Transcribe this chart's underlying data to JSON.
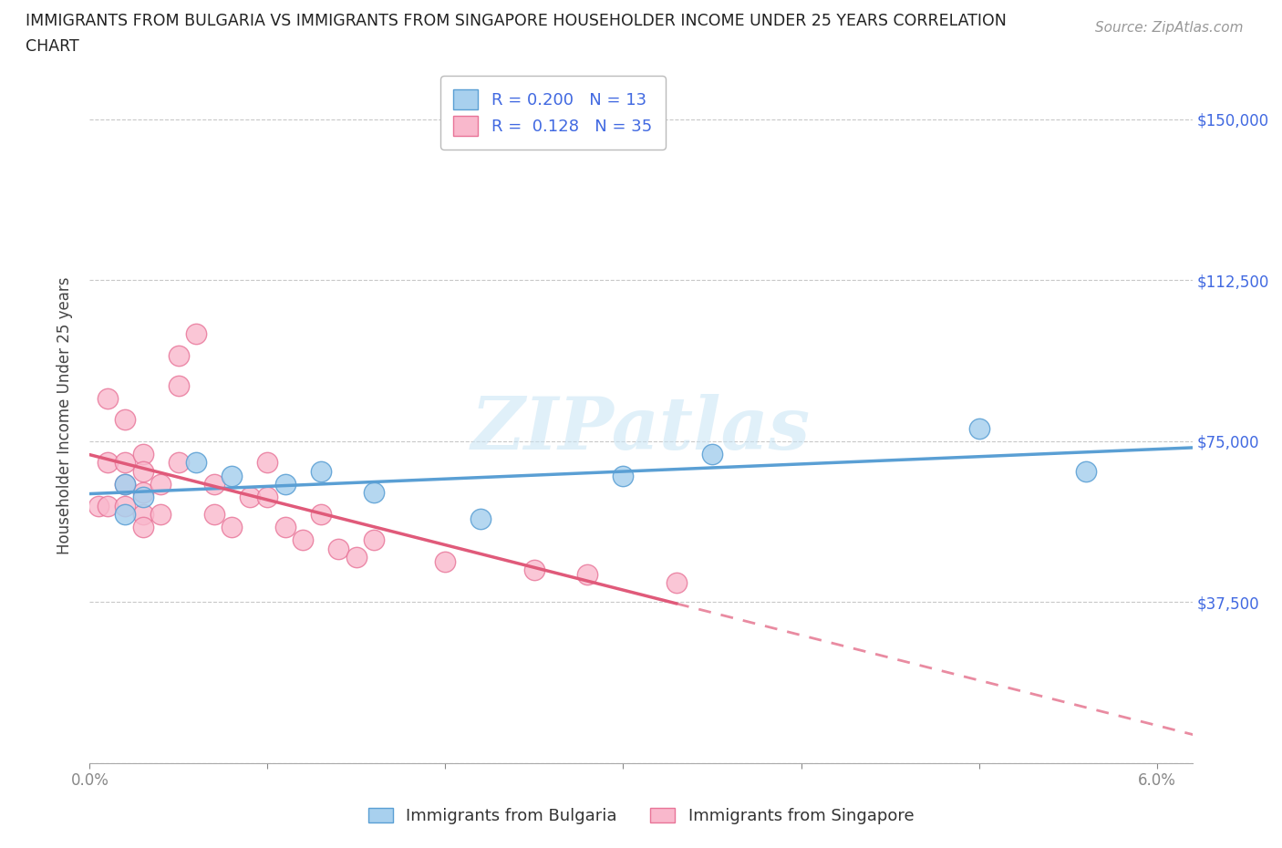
{
  "title_line1": "IMMIGRANTS FROM BULGARIA VS IMMIGRANTS FROM SINGAPORE HOUSEHOLDER INCOME UNDER 25 YEARS CORRELATION",
  "title_line2": "CHART",
  "source": "Source: ZipAtlas.com",
  "ylabel": "Householder Income Under 25 years",
  "xlim": [
    0.0,
    0.062
  ],
  "ylim": [
    0,
    162000
  ],
  "yticks": [
    0,
    37500,
    75000,
    112500,
    150000
  ],
  "ytick_labels": [
    "",
    "$37,500",
    "$75,000",
    "$112,500",
    "$150,000"
  ],
  "xticks": [
    0.0,
    0.01,
    0.02,
    0.03,
    0.04,
    0.05,
    0.06
  ],
  "xtick_labels": [
    "0.0%",
    "",
    "",
    "",
    "",
    "",
    "6.0%"
  ],
  "bulgaria_color": "#a8d0ee",
  "bulgaria_edge": "#5a9fd4",
  "singapore_color": "#f9b8cc",
  "singapore_edge": "#e87498",
  "bulgaria_R": 0.2,
  "bulgaria_N": 13,
  "singapore_R": 0.128,
  "singapore_N": 35,
  "trend_bulgaria_color": "#5a9fd4",
  "trend_singapore_color": "#e05a7a",
  "trend_bulgaria_dashed_color": "#aaccee",
  "watermark_text": "ZIPatlas",
  "bg_color": "#ffffff",
  "grid_color": "#c8c8c8",
  "bulgaria_x": [
    0.002,
    0.002,
    0.003,
    0.006,
    0.008,
    0.011,
    0.013,
    0.016,
    0.022,
    0.03,
    0.035,
    0.05,
    0.056
  ],
  "bulgaria_y": [
    58000,
    65000,
    62000,
    70000,
    67000,
    65000,
    68000,
    63000,
    57000,
    67000,
    72000,
    78000,
    68000
  ],
  "singapore_x": [
    0.0005,
    0.001,
    0.001,
    0.001,
    0.002,
    0.002,
    0.002,
    0.002,
    0.003,
    0.003,
    0.003,
    0.003,
    0.003,
    0.004,
    0.004,
    0.005,
    0.005,
    0.005,
    0.006,
    0.007,
    0.007,
    0.008,
    0.009,
    0.01,
    0.01,
    0.011,
    0.012,
    0.013,
    0.014,
    0.015,
    0.016,
    0.02,
    0.025,
    0.028,
    0.033
  ],
  "singapore_y": [
    60000,
    85000,
    70000,
    60000,
    80000,
    70000,
    65000,
    60000,
    72000,
    68000,
    63000,
    58000,
    55000,
    65000,
    58000,
    95000,
    88000,
    70000,
    100000,
    65000,
    58000,
    55000,
    62000,
    70000,
    62000,
    55000,
    52000,
    58000,
    50000,
    48000,
    52000,
    47000,
    45000,
    44000,
    42000
  ]
}
